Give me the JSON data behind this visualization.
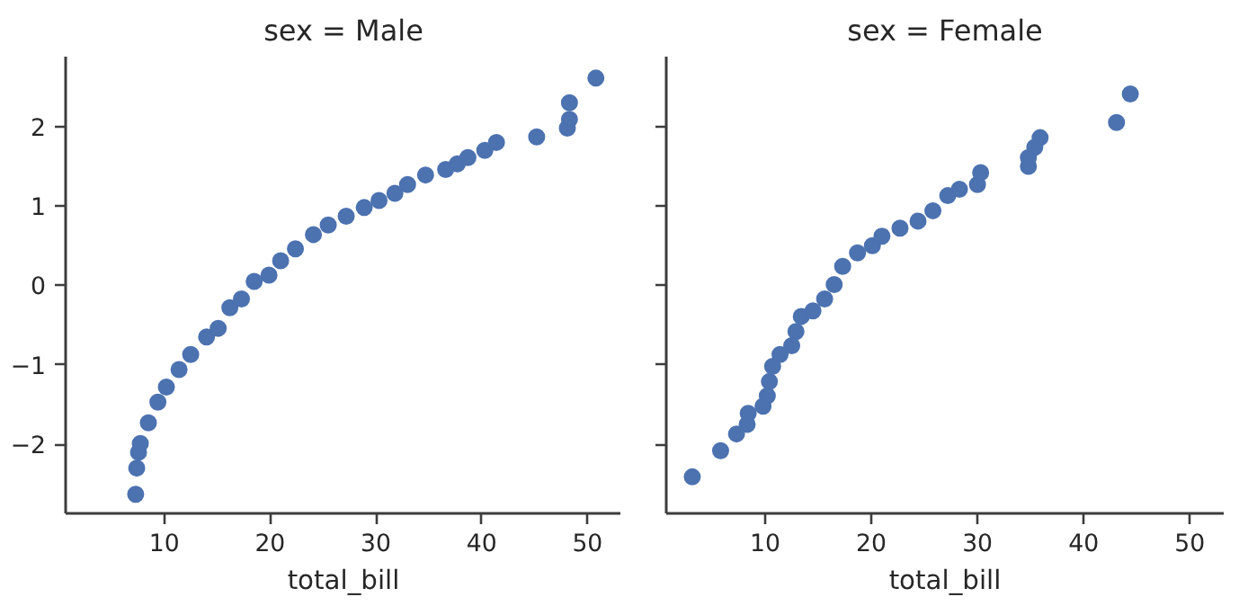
{
  "chart_data": [
    {
      "type": "scatter",
      "title": "sex = Male",
      "xlabel": "total_bill",
      "color": "#4c72b0",
      "marker": "circle",
      "xlim": [
        0.68,
        53.2
      ],
      "ylim": [
        -2.87,
        2.88
      ],
      "xticks": [
        10,
        20,
        30,
        40,
        50
      ],
      "yticks": [
        -2,
        -1,
        0,
        1,
        2
      ],
      "x": [
        7.3,
        7.4,
        7.57,
        7.74,
        8.5,
        9.4,
        10.2,
        11.4,
        12.5,
        14.0,
        15.1,
        16.2,
        17.3,
        18.5,
        19.9,
        21.0,
        22.4,
        24.1,
        25.5,
        27.2,
        28.9,
        30.3,
        31.8,
        33.0,
        34.7,
        36.6,
        37.7,
        38.7,
        40.3,
        41.4,
        45.2,
        48.1,
        48.3,
        48.3,
        50.8
      ],
      "values": [
        -2.63,
        -2.3,
        -2.1,
        -1.99,
        -1.73,
        -1.47,
        -1.28,
        -1.06,
        -0.87,
        -0.65,
        -0.54,
        -0.28,
        -0.17,
        0.05,
        0.13,
        0.31,
        0.46,
        0.64,
        0.76,
        0.87,
        0.98,
        1.07,
        1.16,
        1.27,
        1.39,
        1.46,
        1.53,
        1.61,
        1.7,
        1.8,
        1.87,
        1.98,
        2.09,
        2.3,
        2.61
      ]
    },
    {
      "type": "scatter",
      "title": "sex = Female",
      "xlabel": "total_bill",
      "color": "#4c72b0",
      "marker": "circle",
      "xlim": [
        0.68,
        53.2
      ],
      "ylim": [
        -2.87,
        2.88
      ],
      "xticks": [
        10,
        20,
        30,
        40,
        50
      ],
      "yticks": [
        -2,
        -1,
        0,
        1,
        2
      ],
      "tick_labels": "x",
      "x": [
        3.13,
        5.8,
        7.3,
        8.3,
        8.4,
        9.8,
        10.2,
        10.4,
        10.7,
        11.4,
        12.5,
        12.9,
        13.4,
        14.5,
        15.6,
        16.5,
        17.3,
        18.7,
        20.1,
        21.0,
        22.7,
        24.4,
        25.8,
        27.2,
        28.3,
        30.0,
        30.3,
        34.8,
        34.8,
        35.4,
        35.9,
        43.1,
        44.4
      ],
      "values": [
        -2.41,
        -2.08,
        -1.87,
        -1.75,
        -1.61,
        -1.52,
        -1.39,
        -1.21,
        -1.02,
        -0.87,
        -0.76,
        -0.58,
        -0.39,
        -0.32,
        -0.17,
        0.01,
        0.24,
        0.41,
        0.5,
        0.62,
        0.72,
        0.81,
        0.94,
        1.13,
        1.21,
        1.27,
        1.42,
        1.5,
        1.61,
        1.74,
        1.86,
        2.05,
        2.41
      ]
    }
  ]
}
